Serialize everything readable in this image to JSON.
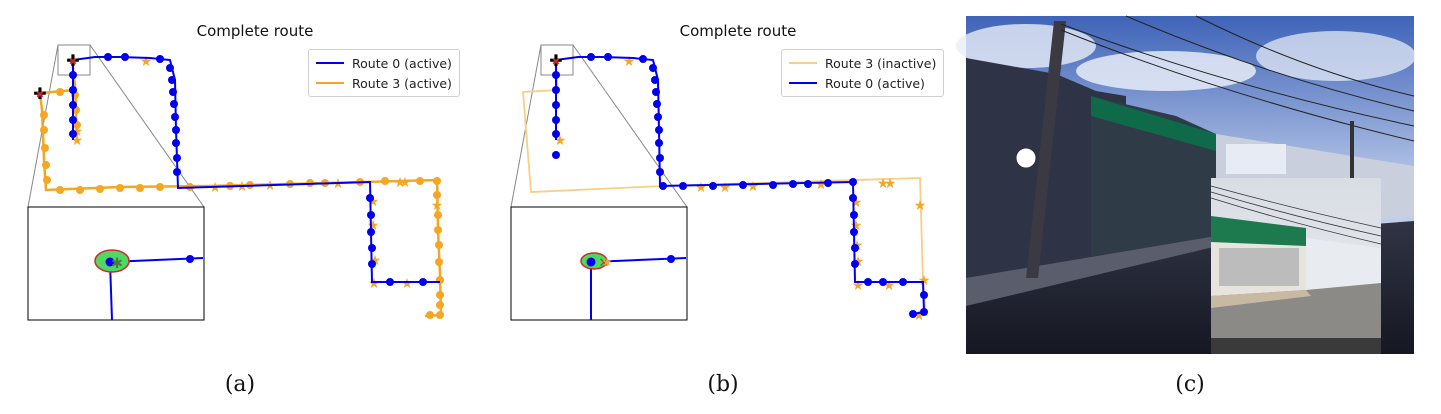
{
  "panel_a": {
    "title": "Complete route",
    "legend": [
      {
        "label": "Route 0 (active)",
        "color": "#0000ee"
      },
      {
        "label": "Route 3 (active)",
        "color": "#f5a623"
      }
    ],
    "caption": "(a)"
  },
  "panel_b": {
    "title": "Complete route",
    "legend": [
      {
        "label": "Route 3 (inactive)",
        "color": "#f8cf84"
      },
      {
        "label": "Route 0 (active)",
        "color": "#0000ee"
      }
    ],
    "caption": "(b)"
  },
  "panel_c": {
    "caption": "(c)",
    "street_photo": "dashcam street view with pharmacy storefront",
    "inset_photo": "reference street view of same storefront"
  },
  "colors": {
    "active_blue": "#0000ee",
    "orange": "#f5a623",
    "inactive_orange": "#f8cf84",
    "zoom_lines": "#888888"
  }
}
